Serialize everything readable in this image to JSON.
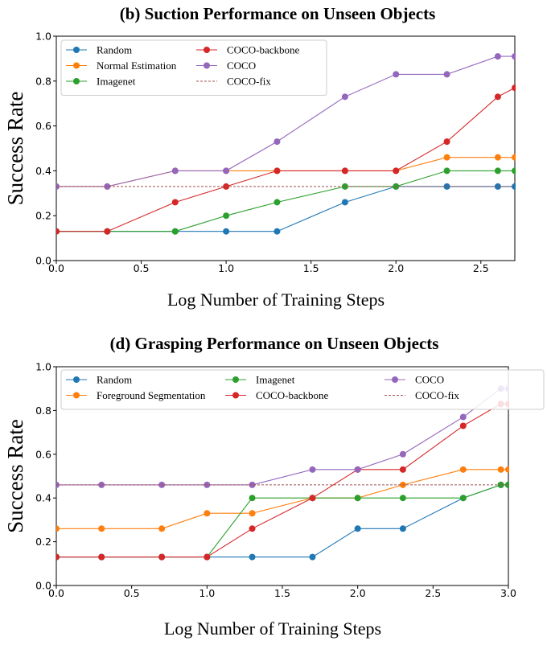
{
  "chart_data": [
    {
      "type": "line",
      "title": "(b) Suction Performance on Unseen Objects",
      "xlabel": "Log Number of Training Steps",
      "ylabel": "Success Rate",
      "xlim": [
        0,
        2.7
      ],
      "ylim": [
        0,
        1.0
      ],
      "xticks": [
        "0.0",
        "0.5",
        "1.0",
        "1.5",
        "2.0",
        "2.5"
      ],
      "yticks": [
        "0.0",
        "0.2",
        "0.4",
        "0.6",
        "0.8",
        "1.0"
      ],
      "legend_position": "upper-left",
      "legend_columns": 2,
      "series": [
        {
          "name": "Random",
          "color": "#1f77b4",
          "style": "line-marker",
          "x": [
            0,
            0.3,
            0.7,
            1.0,
            1.3,
            1.7,
            2.0,
            2.3,
            2.6,
            2.7
          ],
          "y": [
            0.13,
            0.13,
            0.13,
            0.13,
            0.13,
            0.26,
            0.33,
            0.33,
            0.33,
            0.33
          ]
        },
        {
          "name": "Normal Estimation",
          "color": "#ff7f0e",
          "style": "line-marker",
          "x": [
            0,
            0.3,
            0.7,
            1.0,
            1.3,
            1.7,
            2.0,
            2.3,
            2.6,
            2.7
          ],
          "y": [
            0.33,
            0.33,
            0.4,
            0.4,
            0.4,
            0.4,
            0.4,
            0.46,
            0.46,
            0.46
          ]
        },
        {
          "name": "Imagenet",
          "color": "#2ca02c",
          "style": "line-marker",
          "x": [
            0,
            0.3,
            0.7,
            1.0,
            1.3,
            1.7,
            2.0,
            2.3,
            2.6,
            2.7
          ],
          "y": [
            0.13,
            0.13,
            0.13,
            0.2,
            0.26,
            0.33,
            0.33,
            0.4,
            0.4,
            0.4
          ]
        },
        {
          "name": "COCO-backbone",
          "color": "#d62728",
          "style": "line-marker",
          "x": [
            0,
            0.3,
            0.7,
            1.0,
            1.3,
            1.7,
            2.0,
            2.3,
            2.6,
            2.7
          ],
          "y": [
            0.13,
            0.13,
            0.26,
            0.33,
            0.4,
            0.4,
            0.4,
            0.53,
            0.73,
            0.77
          ]
        },
        {
          "name": "COCO",
          "color": "#9467bd",
          "style": "line-marker",
          "x": [
            0,
            0.3,
            0.7,
            1.0,
            1.3,
            1.7,
            2.0,
            2.3,
            2.6,
            2.7
          ],
          "y": [
            0.33,
            0.33,
            0.4,
            0.4,
            0.53,
            0.73,
            0.83,
            0.83,
            0.91,
            0.91
          ]
        },
        {
          "name": "COCO-fix",
          "color": "#a05050",
          "style": "dashed",
          "x": [
            0,
            2.7
          ],
          "y": [
            0.33,
            0.33
          ]
        }
      ]
    },
    {
      "type": "line",
      "title": "(d) Grasping Performance on Unseen Objects",
      "xlabel": "Log Number of Training Steps",
      "ylabel": "Success Rate",
      "xlim": [
        0,
        3.0
      ],
      "ylim": [
        0,
        1.0
      ],
      "xticks": [
        "0.0",
        "0.5",
        "1.0",
        "1.5",
        "2.0",
        "2.5",
        "3.0"
      ],
      "yticks": [
        "0.0",
        "0.2",
        "0.4",
        "0.6",
        "0.8",
        "1.0"
      ],
      "legend_position": "upper-left",
      "legend_columns": 3,
      "series": [
        {
          "name": "Random",
          "color": "#1f77b4",
          "style": "line-marker",
          "x": [
            0,
            0.3,
            0.7,
            1.0,
            1.3,
            1.7,
            2.0,
            2.3,
            2.7,
            2.95,
            3.0
          ],
          "y": [
            0.13,
            0.13,
            0.13,
            0.13,
            0.13,
            0.13,
            0.26,
            0.26,
            0.4,
            0.46,
            0.46
          ]
        },
        {
          "name": "Foreground Segmentation",
          "color": "#ff7f0e",
          "style": "line-marker",
          "x": [
            0,
            0.3,
            0.7,
            1.0,
            1.3,
            1.7,
            2.0,
            2.3,
            2.7,
            2.95,
            3.0
          ],
          "y": [
            0.26,
            0.26,
            0.26,
            0.33,
            0.33,
            0.4,
            0.4,
            0.46,
            0.53,
            0.53,
            0.53
          ]
        },
        {
          "name": "Imagenet",
          "color": "#2ca02c",
          "style": "line-marker",
          "x": [
            0,
            0.3,
            0.7,
            1.0,
            1.3,
            1.7,
            2.0,
            2.3,
            2.7,
            2.95,
            3.0
          ],
          "y": [
            0.13,
            0.13,
            0.13,
            0.13,
            0.4,
            0.4,
            0.4,
            0.4,
            0.4,
            0.46,
            0.46
          ]
        },
        {
          "name": "COCO-backbone",
          "color": "#d62728",
          "style": "line-marker",
          "x": [
            0,
            0.3,
            0.7,
            1.0,
            1.3,
            1.7,
            2.0,
            2.3,
            2.7,
            2.95,
            3.0
          ],
          "y": [
            0.13,
            0.13,
            0.13,
            0.13,
            0.26,
            0.4,
            0.53,
            0.53,
            0.73,
            0.83,
            0.83
          ]
        },
        {
          "name": "COCO",
          "color": "#9467bd",
          "style": "line-marker",
          "x": [
            0,
            0.3,
            0.7,
            1.0,
            1.3,
            1.7,
            2.0,
            2.3,
            2.7,
            2.95,
            3.0
          ],
          "y": [
            0.46,
            0.46,
            0.46,
            0.46,
            0.46,
            0.53,
            0.53,
            0.6,
            0.77,
            0.9,
            0.9
          ]
        },
        {
          "name": "COCO-fix",
          "color": "#a05050",
          "style": "dashed",
          "x": [
            0,
            3.0
          ],
          "y": [
            0.46,
            0.46
          ]
        }
      ]
    }
  ]
}
